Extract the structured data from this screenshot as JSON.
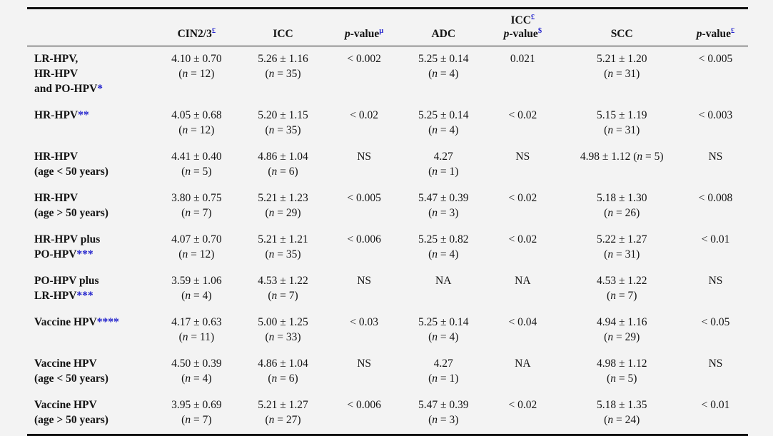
{
  "colors": {
    "accent_blue": "#2222cc",
    "text": "#141414",
    "rule": "#111111",
    "background": "#f3f3f3"
  },
  "format": {
    "open": "(",
    "n": "n",
    "eq": " = ",
    "close": ")"
  },
  "header": {
    "cols": [
      {
        "name": "cin23",
        "text": "CIN2/3",
        "sup": "£"
      },
      {
        "name": "icc",
        "text": "ICC"
      },
      {
        "name": "p-value-mu",
        "p": "p",
        "text": "-value",
        "sup": "µ"
      },
      {
        "name": "adc",
        "text": "ADC"
      },
      {
        "name": "icc-p-value",
        "top_text": "ICC",
        "top_sup": "£",
        "p": "p",
        "text": "-value",
        "sup": "$"
      },
      {
        "name": "scc",
        "text": "SCC"
      },
      {
        "name": "p-value-pound",
        "p": "p",
        "text": "-value",
        "sup": "£"
      }
    ]
  },
  "rows": [
    {
      "label_lines": [
        {
          "text": "LR-HPV,"
        },
        {
          "text": "HR-HPV"
        },
        {
          "text": "and PO-HPV",
          "stars": "*"
        }
      ],
      "cells": [
        {
          "value": "4.10 ± 0.70",
          "n": "12"
        },
        {
          "value": "5.26 ± 1.16",
          "n": "35"
        },
        {
          "value": "< 0.002"
        },
        {
          "value": "5.25 ± 0.14",
          "n": "4"
        },
        {
          "value": "0.021"
        },
        {
          "value": "5.21 ± 1.20",
          "n": "31"
        },
        {
          "value": "< 0.005"
        }
      ]
    },
    {
      "label_lines": [
        {
          "text": "HR-HPV",
          "stars": "**"
        }
      ],
      "cells": [
        {
          "value": "4.05 ± 0.68",
          "n": "12"
        },
        {
          "value": "5.20 ± 1.15",
          "n": "35"
        },
        {
          "value": "< 0.02"
        },
        {
          "value": "5.25 ± 0.14",
          "n": "4"
        },
        {
          "value": "< 0.02"
        },
        {
          "value": "5.15 ± 1.19",
          "n": "31"
        },
        {
          "value": "< 0.003"
        }
      ]
    },
    {
      "label_lines": [
        {
          "text": "HR-HPV"
        },
        {
          "text": "(age < 50 years)"
        }
      ],
      "cells": [
        {
          "value": "4.41 ± 0.40",
          "n": "5"
        },
        {
          "value": "4.86 ± 1.04",
          "n": "6"
        },
        {
          "value": "NS"
        },
        {
          "value": "4.27",
          "n": "1"
        },
        {
          "value": "NS"
        },
        {
          "value": "4.98 ± 1.12",
          "n": "5",
          "inline": true
        },
        {
          "value": "NS"
        }
      ]
    },
    {
      "label_lines": [
        {
          "text": "HR-HPV"
        },
        {
          "text": "(age > 50 years)"
        }
      ],
      "cells": [
        {
          "value": "3.80 ± 0.75",
          "n": "7"
        },
        {
          "value": "5.21 ± 1.23",
          "n": "29"
        },
        {
          "value": "< 0.005"
        },
        {
          "value": "5.47 ± 0.39",
          "n": "3"
        },
        {
          "value": "< 0.02"
        },
        {
          "value": "5.18 ± 1.30",
          "n": "26"
        },
        {
          "value": "< 0.008"
        }
      ]
    },
    {
      "label_lines": [
        {
          "text": "HR-HPV plus"
        },
        {
          "text": "PO-HPV",
          "stars": "***"
        }
      ],
      "cells": [
        {
          "value": "4.07 ± 0.70",
          "n": "12"
        },
        {
          "value": "5.21 ± 1.21",
          "n": "35"
        },
        {
          "value": "< 0.006"
        },
        {
          "value": "5.25 ± 0.82",
          "n": "4"
        },
        {
          "value": "< 0.02"
        },
        {
          "value": "5.22 ± 1.27",
          "n": "31"
        },
        {
          "value": "< 0.01"
        }
      ]
    },
    {
      "label_lines": [
        {
          "text": "PO-HPV plus"
        },
        {
          "text": "LR-HPV",
          "stars": "***"
        }
      ],
      "cells": [
        {
          "value": "3.59 ± 1.06",
          "n": "4"
        },
        {
          "value": "4.53 ± 1.22",
          "n": "7"
        },
        {
          "value": "NS"
        },
        {
          "value": "NA"
        },
        {
          "value": "NA"
        },
        {
          "value": "4.53 ± 1.22",
          "n": "7"
        },
        {
          "value": "NS"
        }
      ]
    },
    {
      "label_lines": [
        {
          "text": "Vaccine HPV",
          "stars": "****"
        }
      ],
      "cells": [
        {
          "value": "4.17 ± 0.63",
          "n": "11"
        },
        {
          "value": "5.00 ± 1.25",
          "n": "33"
        },
        {
          "value": "< 0.03"
        },
        {
          "value": "5.25 ± 0.14",
          "n": "4"
        },
        {
          "value": "< 0.04"
        },
        {
          "value": "4.94 ± 1.16",
          "n": "29"
        },
        {
          "value": "< 0.05"
        }
      ]
    },
    {
      "label_lines": [
        {
          "text": "Vaccine HPV"
        },
        {
          "text": "(age < 50 years)"
        }
      ],
      "cells": [
        {
          "value": "4.50 ± 0.39",
          "n": "4"
        },
        {
          "value": "4.86 ± 1.04",
          "n": "6"
        },
        {
          "value": "NS"
        },
        {
          "value": "4.27",
          "n": "1"
        },
        {
          "value": "NA"
        },
        {
          "value": "4.98 ± 1.12",
          "n": "5"
        },
        {
          "value": "NS"
        }
      ]
    },
    {
      "label_lines": [
        {
          "text": "Vaccine HPV"
        },
        {
          "text": "(age > 50 years)"
        }
      ],
      "cells": [
        {
          "value": "3.95 ± 0.69",
          "n": "7"
        },
        {
          "value": "5.21 ± 1.27",
          "n": "27"
        },
        {
          "value": "< 0.006"
        },
        {
          "value": "5.47 ± 0.39",
          "n": "3"
        },
        {
          "value": "< 0.02"
        },
        {
          "value": "5.18 ± 1.35",
          "n": "24"
        },
        {
          "value": "< 0.01"
        }
      ]
    }
  ]
}
